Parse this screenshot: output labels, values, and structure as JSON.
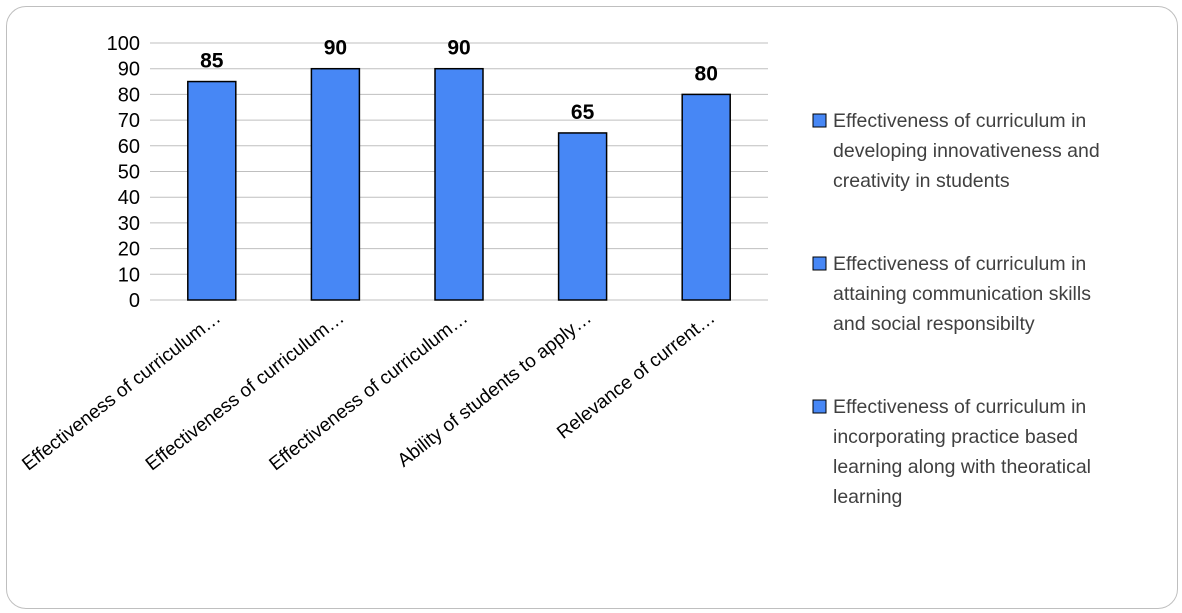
{
  "chart_data": {
    "type": "bar",
    "categories": [
      "Effectiveness of curriculum…",
      "Effectiveness of curriculum…",
      "Effectiveness of curriculum…",
      "Ability of students to apply…",
      "Relevance of current…"
    ],
    "values": [
      85,
      90,
      90,
      65,
      80
    ],
    "data_labels": [
      "85",
      "90",
      "90",
      "65",
      "80"
    ],
    "ylim": [
      0,
      100
    ],
    "y_ticks": [
      "0",
      "10",
      "20",
      "30",
      "40",
      "50",
      "60",
      "70",
      "80",
      "90",
      "100"
    ],
    "grid": true,
    "legend_position": "right",
    "bar_color": "#4787F5",
    "bar_border_color": "#000000",
    "legend": [
      {
        "name": "Effectiveness of curriculum in developing innovativeness and creativity in students",
        "lines": [
          "Effectiveness of curriculum in",
          "developing innovativeness and",
          "creativity in students"
        ]
      },
      {
        "name": "Effectiveness of curriculum in attaining communication skills and social responsibilty",
        "lines": [
          "Effectiveness of curriculum in",
          "attaining communication skills",
          "and social responsibilty"
        ]
      },
      {
        "name": "Effectiveness of curriculum in incorporating practice based learning along with theoratical learning",
        "lines": [
          "Effectiveness of curriculum in",
          "incorporating practice based",
          "learning along with theoratical",
          "learning"
        ]
      }
    ]
  }
}
